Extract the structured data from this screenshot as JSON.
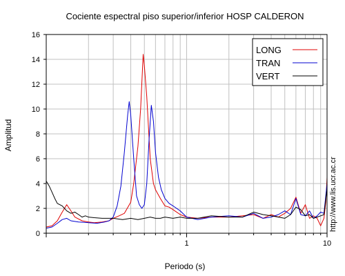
{
  "chart_data": {
    "type": "line",
    "title": "Cociente espectral piso superior/inferior  HOSP CALDERON",
    "xlabel": "Periodo (s)",
    "ylabel": "Amplitud",
    "xscale": "log",
    "xlim": [
      0.1,
      10
    ],
    "ylim": [
      0,
      16
    ],
    "x_ticks": [
      1,
      10
    ],
    "x_tick_labels": [
      "1",
      "10"
    ],
    "y_ticks": [
      0,
      2,
      4,
      6,
      8,
      10,
      12,
      14,
      16
    ],
    "grid": true,
    "legend_position": "top-right",
    "series": [
      {
        "name": "LONG",
        "color": "#e00000",
        "points": [
          [
            0.1,
            0.5
          ],
          [
            0.11,
            0.6
          ],
          [
            0.12,
            1.0
          ],
          [
            0.13,
            1.7
          ],
          [
            0.14,
            2.3
          ],
          [
            0.15,
            1.8
          ],
          [
            0.16,
            1.3
          ],
          [
            0.18,
            1.0
          ],
          [
            0.2,
            0.9
          ],
          [
            0.22,
            0.85
          ],
          [
            0.25,
            0.9
          ],
          [
            0.28,
            1.0
          ],
          [
            0.3,
            1.2
          ],
          [
            0.33,
            1.4
          ],
          [
            0.36,
            1.6
          ],
          [
            0.4,
            2.5
          ],
          [
            0.42,
            4.0
          ],
          [
            0.45,
            7.0
          ],
          [
            0.47,
            10.0
          ],
          [
            0.49,
            14.4
          ],
          [
            0.5,
            13.5
          ],
          [
            0.52,
            11.0
          ],
          [
            0.55,
            6.0
          ],
          [
            0.58,
            4.0
          ],
          [
            0.6,
            3.5
          ],
          [
            0.65,
            2.8
          ],
          [
            0.7,
            2.2
          ],
          [
            0.75,
            2.1
          ],
          [
            0.8,
            1.9
          ],
          [
            0.9,
            1.5
          ],
          [
            1.0,
            1.3
          ],
          [
            1.2,
            1.2
          ],
          [
            1.5,
            1.3
          ],
          [
            2.0,
            1.3
          ],
          [
            2.5,
            1.4
          ],
          [
            3.0,
            1.5
          ],
          [
            3.5,
            1.2
          ],
          [
            4.0,
            1.5
          ],
          [
            4.5,
            1.3
          ],
          [
            5.0,
            1.6
          ],
          [
            5.5,
            2.0
          ],
          [
            6.0,
            2.9
          ],
          [
            6.5,
            1.6
          ],
          [
            7.0,
            2.3
          ],
          [
            7.5,
            1.2
          ],
          [
            8.0,
            1.4
          ],
          [
            8.5,
            1.2
          ],
          [
            9.0,
            0.6
          ],
          [
            9.5,
            1.2
          ],
          [
            9.8,
            2.5
          ],
          [
            10.0,
            4.5
          ]
        ]
      },
      {
        "name": "TRAN",
        "color": "#0000d0",
        "points": [
          [
            0.1,
            0.4
          ],
          [
            0.11,
            0.5
          ],
          [
            0.12,
            0.8
          ],
          [
            0.13,
            1.1
          ],
          [
            0.14,
            1.2
          ],
          [
            0.15,
            1.0
          ],
          [
            0.17,
            0.9
          ],
          [
            0.2,
            0.85
          ],
          [
            0.23,
            0.8
          ],
          [
            0.26,
            0.9
          ],
          [
            0.28,
            1.0
          ],
          [
            0.3,
            1.3
          ],
          [
            0.32,
            2.2
          ],
          [
            0.34,
            3.8
          ],
          [
            0.36,
            6.5
          ],
          [
            0.38,
            9.5
          ],
          [
            0.39,
            10.6
          ],
          [
            0.4,
            9.5
          ],
          [
            0.42,
            6.0
          ],
          [
            0.44,
            3.0
          ],
          [
            0.46,
            2.3
          ],
          [
            0.48,
            2.0
          ],
          [
            0.5,
            2.3
          ],
          [
            0.52,
            4.0
          ],
          [
            0.54,
            7.5
          ],
          [
            0.56,
            10.3
          ],
          [
            0.58,
            9.0
          ],
          [
            0.6,
            6.5
          ],
          [
            0.63,
            4.5
          ],
          [
            0.66,
            3.5
          ],
          [
            0.7,
            2.8
          ],
          [
            0.75,
            2.4
          ],
          [
            0.8,
            2.2
          ],
          [
            0.9,
            1.8
          ],
          [
            1.0,
            1.3
          ],
          [
            1.2,
            1.1
          ],
          [
            1.5,
            1.3
          ],
          [
            2.0,
            1.4
          ],
          [
            2.5,
            1.3
          ],
          [
            3.0,
            1.6
          ],
          [
            3.5,
            1.2
          ],
          [
            4.0,
            1.3
          ],
          [
            4.5,
            1.5
          ],
          [
            5.0,
            1.8
          ],
          [
            5.5,
            1.5
          ],
          [
            6.0,
            2.8
          ],
          [
            6.5,
            1.5
          ],
          [
            7.0,
            1.4
          ],
          [
            7.5,
            1.8
          ],
          [
            8.0,
            1.2
          ],
          [
            8.5,
            1.4
          ],
          [
            9.0,
            1.7
          ],
          [
            9.5,
            1.6
          ],
          [
            10.0,
            4.0
          ]
        ]
      },
      {
        "name": "VERT",
        "color": "#000000",
        "points": [
          [
            0.1,
            4.2
          ],
          [
            0.105,
            3.8
          ],
          [
            0.11,
            3.3
          ],
          [
            0.115,
            2.8
          ],
          [
            0.12,
            2.4
          ],
          [
            0.13,
            2.2
          ],
          [
            0.14,
            1.8
          ],
          [
            0.15,
            1.6
          ],
          [
            0.16,
            1.7
          ],
          [
            0.17,
            1.5
          ],
          [
            0.18,
            1.3
          ],
          [
            0.19,
            1.4
          ],
          [
            0.2,
            1.3
          ],
          [
            0.22,
            1.25
          ],
          [
            0.25,
            1.2
          ],
          [
            0.28,
            1.2
          ],
          [
            0.3,
            1.2
          ],
          [
            0.35,
            1.1
          ],
          [
            0.4,
            1.2
          ],
          [
            0.45,
            1.1
          ],
          [
            0.5,
            1.2
          ],
          [
            0.55,
            1.3
          ],
          [
            0.6,
            1.2
          ],
          [
            0.65,
            1.2
          ],
          [
            0.7,
            1.3
          ],
          [
            0.8,
            1.2
          ],
          [
            0.9,
            1.3
          ],
          [
            1.0,
            1.2
          ],
          [
            1.2,
            1.2
          ],
          [
            1.5,
            1.4
          ],
          [
            2.0,
            1.3
          ],
          [
            2.5,
            1.3
          ],
          [
            3.0,
            1.7
          ],
          [
            3.5,
            1.5
          ],
          [
            4.0,
            1.4
          ],
          [
            4.5,
            1.3
          ],
          [
            5.0,
            1.2
          ],
          [
            5.5,
            1.5
          ],
          [
            6.0,
            2.1
          ],
          [
            6.5,
            1.9
          ],
          [
            7.0,
            1.4
          ],
          [
            7.5,
            1.5
          ],
          [
            8.0,
            1.2
          ],
          [
            8.5,
            1.3
          ],
          [
            9.0,
            1.4
          ],
          [
            9.5,
            1.5
          ],
          [
            10.0,
            3.6
          ]
        ]
      }
    ]
  },
  "credit": "http://www.lis.ucr.ac.cr"
}
